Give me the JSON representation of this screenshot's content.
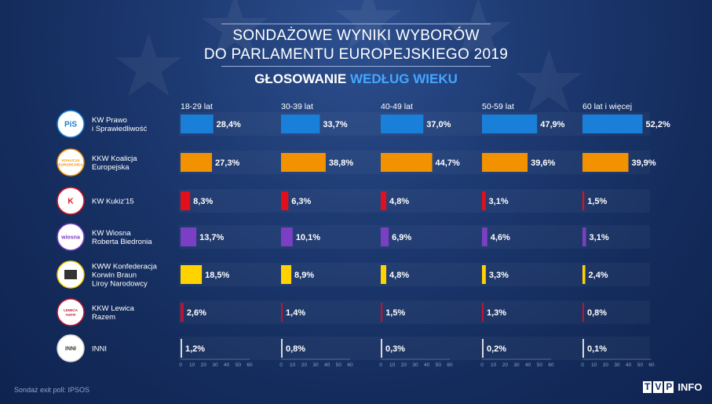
{
  "title_line1": "SONDAŻOWE WYNIKI WYBORÓW",
  "title_line2": "DO PARLAMENTU EUROPEJSKIEGO 2019",
  "subtitle_part1": "GŁOSOWANIE",
  "subtitle_part2": "WEDŁUG WIEKU",
  "source": "Sondaż exit poll: IPSOS",
  "logo": {
    "letters": [
      "T",
      "V",
      "P"
    ],
    "suffix": "INFO"
  },
  "colors": {
    "accent": "#44a6ff"
  },
  "chart_data": {
    "type": "bar",
    "age_groups": [
      "18-29 lat",
      "30-39 lat",
      "40-49 lat",
      "50-59 lat",
      "60 lat i więcej"
    ],
    "xlim": [
      0,
      60
    ],
    "ticks": [
      "0",
      "10",
      "20",
      "30",
      "40",
      "50",
      "60"
    ],
    "value_suffix": "%",
    "series": [
      {
        "name": "KW Prawo i Sprawiedliwość",
        "name_lines": [
          "KW Prawo",
          "i Sprawiedliwość"
        ],
        "logo_text": "PiS",
        "color": "#1a7fd8",
        "values": [
          28.4,
          33.7,
          37.0,
          47.9,
          52.2
        ],
        "labels": [
          "28,4%",
          "33,7%",
          "37,0%",
          "47,9%",
          "52,2%"
        ]
      },
      {
        "name": "KKW Koalicja Europejska",
        "name_lines": [
          "KKW Koalicja",
          "Europejska"
        ],
        "logo_text": "KOALICJA EUROPEJSKA",
        "color": "#f39200",
        "values": [
          27.3,
          38.8,
          44.7,
          39.6,
          39.9
        ],
        "labels": [
          "27,3%",
          "38,8%",
          "44,7%",
          "39,6%",
          "39,9%"
        ]
      },
      {
        "name": "KW Kukiz'15",
        "name_lines": [
          "KW Kukiz'15"
        ],
        "logo_text": "K",
        "color": "#e30f1b",
        "values": [
          8.3,
          6.3,
          4.8,
          3.1,
          1.5
        ],
        "labels": [
          "8,3%",
          "6,3%",
          "4,8%",
          "3,1%",
          "1,5%"
        ]
      },
      {
        "name": "KW Wiosna Roberta Biedronia",
        "name_lines": [
          "KW Wiosna",
          "Roberta Biedronia"
        ],
        "logo_text": "wiosna",
        "color": "#7b3fc4",
        "values": [
          13.7,
          10.1,
          6.9,
          4.6,
          3.1
        ],
        "labels": [
          "13,7%",
          "10,1%",
          "6,9%",
          "4,6%",
          "3,1%"
        ]
      },
      {
        "name": "KWW Konfederacja Korwin Braun Liroy Narodowcy",
        "name_lines": [
          "KWW Konfederacja",
          "Korwin Braun",
          "Liroy Narodowcy"
        ],
        "logo_text": "",
        "color": "#ffd200",
        "values": [
          18.5,
          8.9,
          4.8,
          3.3,
          2.4
        ],
        "labels": [
          "18,5%",
          "8,9%",
          "4,8%",
          "3,3%",
          "2,4%"
        ]
      },
      {
        "name": "KKW Lewica Razem",
        "name_lines": [
          "KKW Lewica",
          "Razem"
        ],
        "logo_text": "LEWICA razem",
        "color": "#c8102e",
        "values": [
          2.6,
          1.4,
          1.5,
          1.3,
          0.8
        ],
        "labels": [
          "2,6%",
          "1,4%",
          "1,5%",
          "1,3%",
          "0,8%"
        ]
      },
      {
        "name": "INNI",
        "name_lines": [
          "INNI"
        ],
        "logo_text": "INNI",
        "color": "#d9d9d9",
        "values": [
          1.2,
          0.8,
          0.3,
          0.2,
          0.1
        ],
        "labels": [
          "1,2%",
          "0,8%",
          "0,3%",
          "0,2%",
          "0,1%"
        ]
      }
    ]
  }
}
